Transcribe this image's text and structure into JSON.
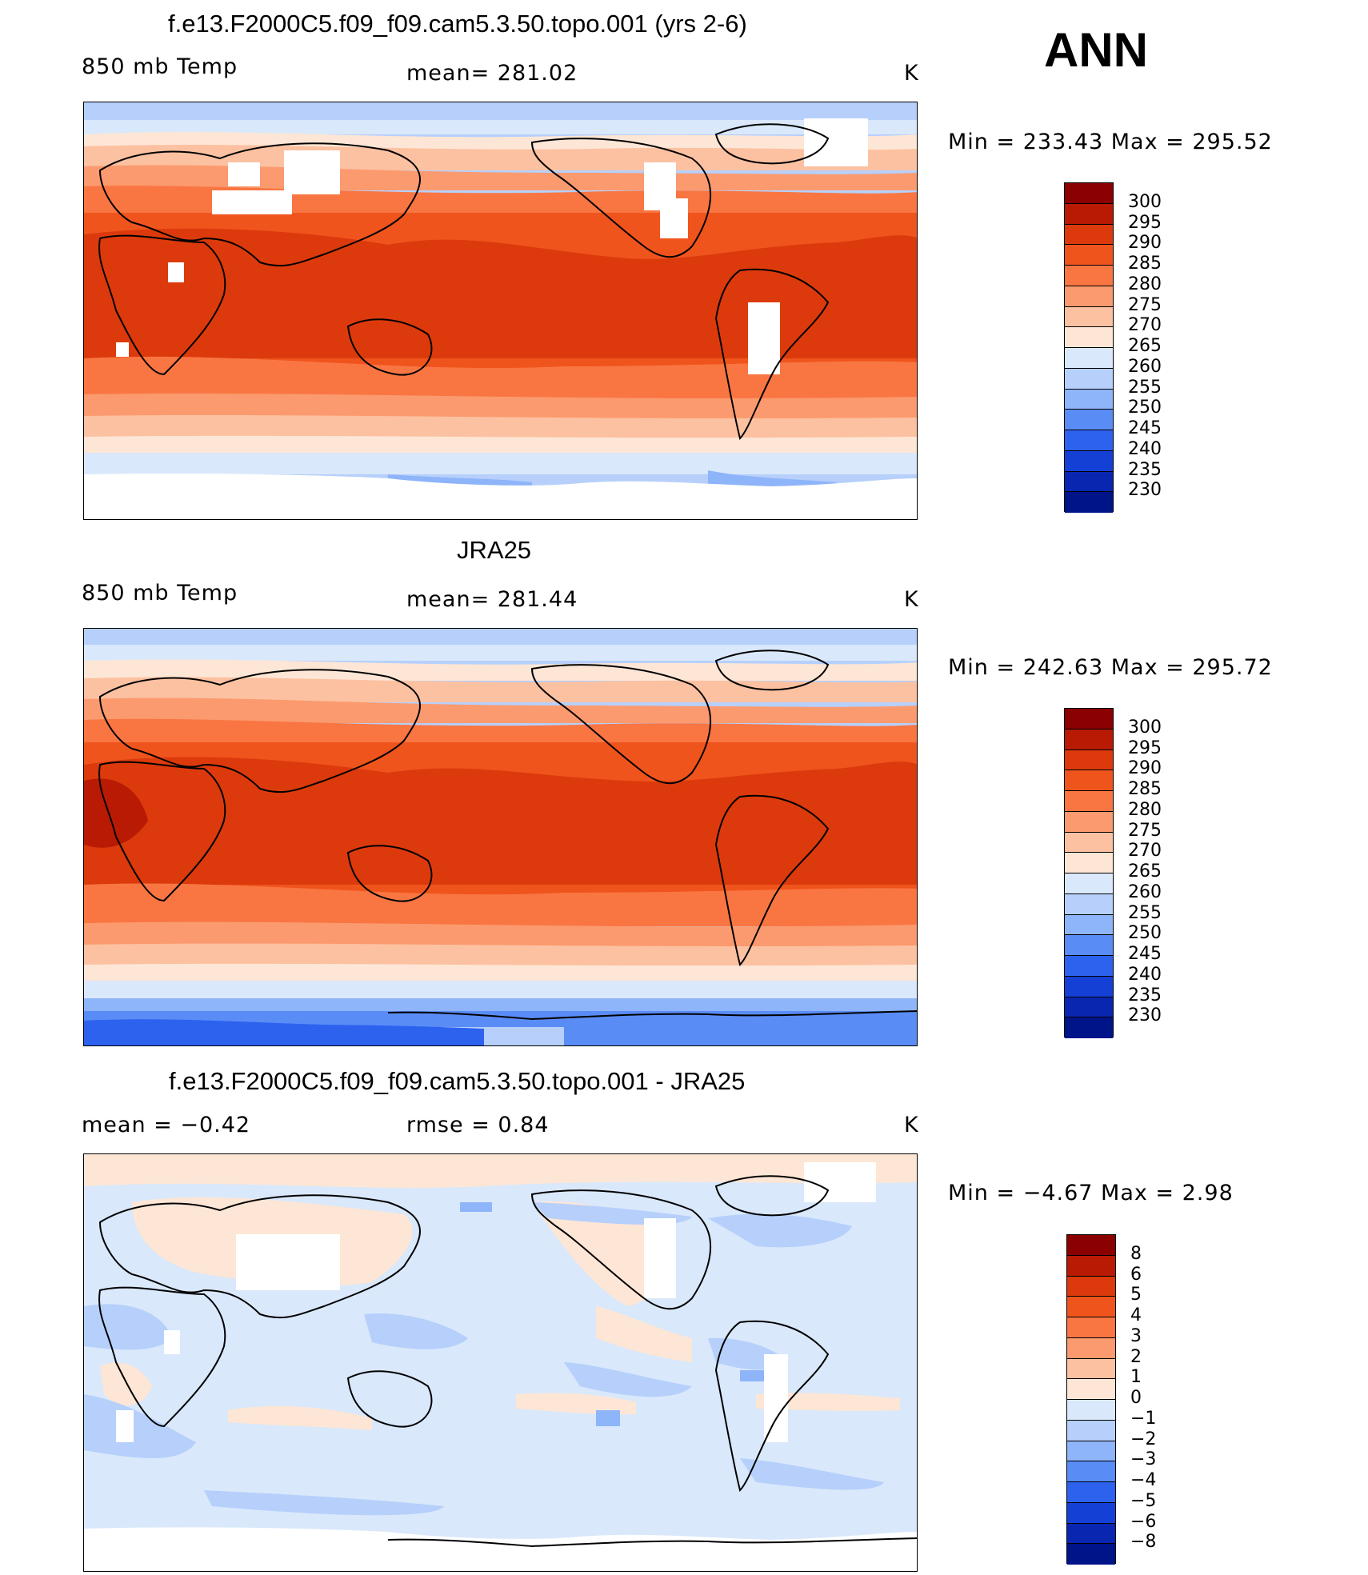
{
  "season": "ANN",
  "panels": [
    {
      "title": "f.e13.F2000C5.f09_f09.cam5.3.50.topo.001 (yrs 2-6)",
      "left_label": "850 mb Temp",
      "center_label": "mean= 281.02",
      "unit": "K",
      "minmax": "Min  =  233.43  Max  =  295.52",
      "colorbar_ticks": [
        "300",
        "295",
        "290",
        "285",
        "280",
        "275",
        "270",
        "265",
        "260",
        "255",
        "250",
        "245",
        "240",
        "235",
        "230"
      ],
      "colors": [
        "#8b0000",
        "#b81a04",
        "#dc3a0c",
        "#f0541d",
        "#f97642",
        "#fb9a6f",
        "#fcc1a1",
        "#fde6d6",
        "#d9e8fb",
        "#b6d0fb",
        "#8eb4fa",
        "#5a8cf6",
        "#2d62ef",
        "#1540d6",
        "#0926b0",
        "#00148a"
      ]
    },
    {
      "title": "JRA25",
      "left_label": "850 mb Temp",
      "center_label": "mean= 281.44",
      "unit": "K",
      "minmax": "Min  =  242.63  Max  =  295.72",
      "colorbar_ticks": [
        "300",
        "295",
        "290",
        "285",
        "280",
        "275",
        "270",
        "265",
        "260",
        "255",
        "250",
        "245",
        "240",
        "235",
        "230"
      ],
      "colors": [
        "#8b0000",
        "#b81a04",
        "#dc3a0c",
        "#f0541d",
        "#f97642",
        "#fb9a6f",
        "#fcc1a1",
        "#fde6d6",
        "#d9e8fb",
        "#b6d0fb",
        "#8eb4fa",
        "#5a8cf6",
        "#2d62ef",
        "#1540d6",
        "#0926b0",
        "#00148a"
      ]
    },
    {
      "title": "f.e13.F2000C5.f09_f09.cam5.3.50.topo.001 - JRA25",
      "left_label": "mean =    −0.42",
      "center_label": "rmse =     0.84",
      "unit": "K",
      "minmax": "Min  =    −4.67  Max  =      2.98",
      "colorbar_ticks": [
        "8",
        "6",
        "5",
        "4",
        "3",
        "2",
        "1",
        "0",
        "−1",
        "−2",
        "−3",
        "−4",
        "−5",
        "−6",
        "−8"
      ],
      "colors": [
        "#8b0000",
        "#b81a04",
        "#dc3a0c",
        "#f0541d",
        "#f97642",
        "#fb9a6f",
        "#fcc1a1",
        "#fde6d6",
        "#d9e8fb",
        "#b6d0fb",
        "#8eb4fa",
        "#5a8cf6",
        "#2d62ef",
        "#1540d6",
        "#0926b0",
        "#00148a"
      ]
    }
  ]
}
